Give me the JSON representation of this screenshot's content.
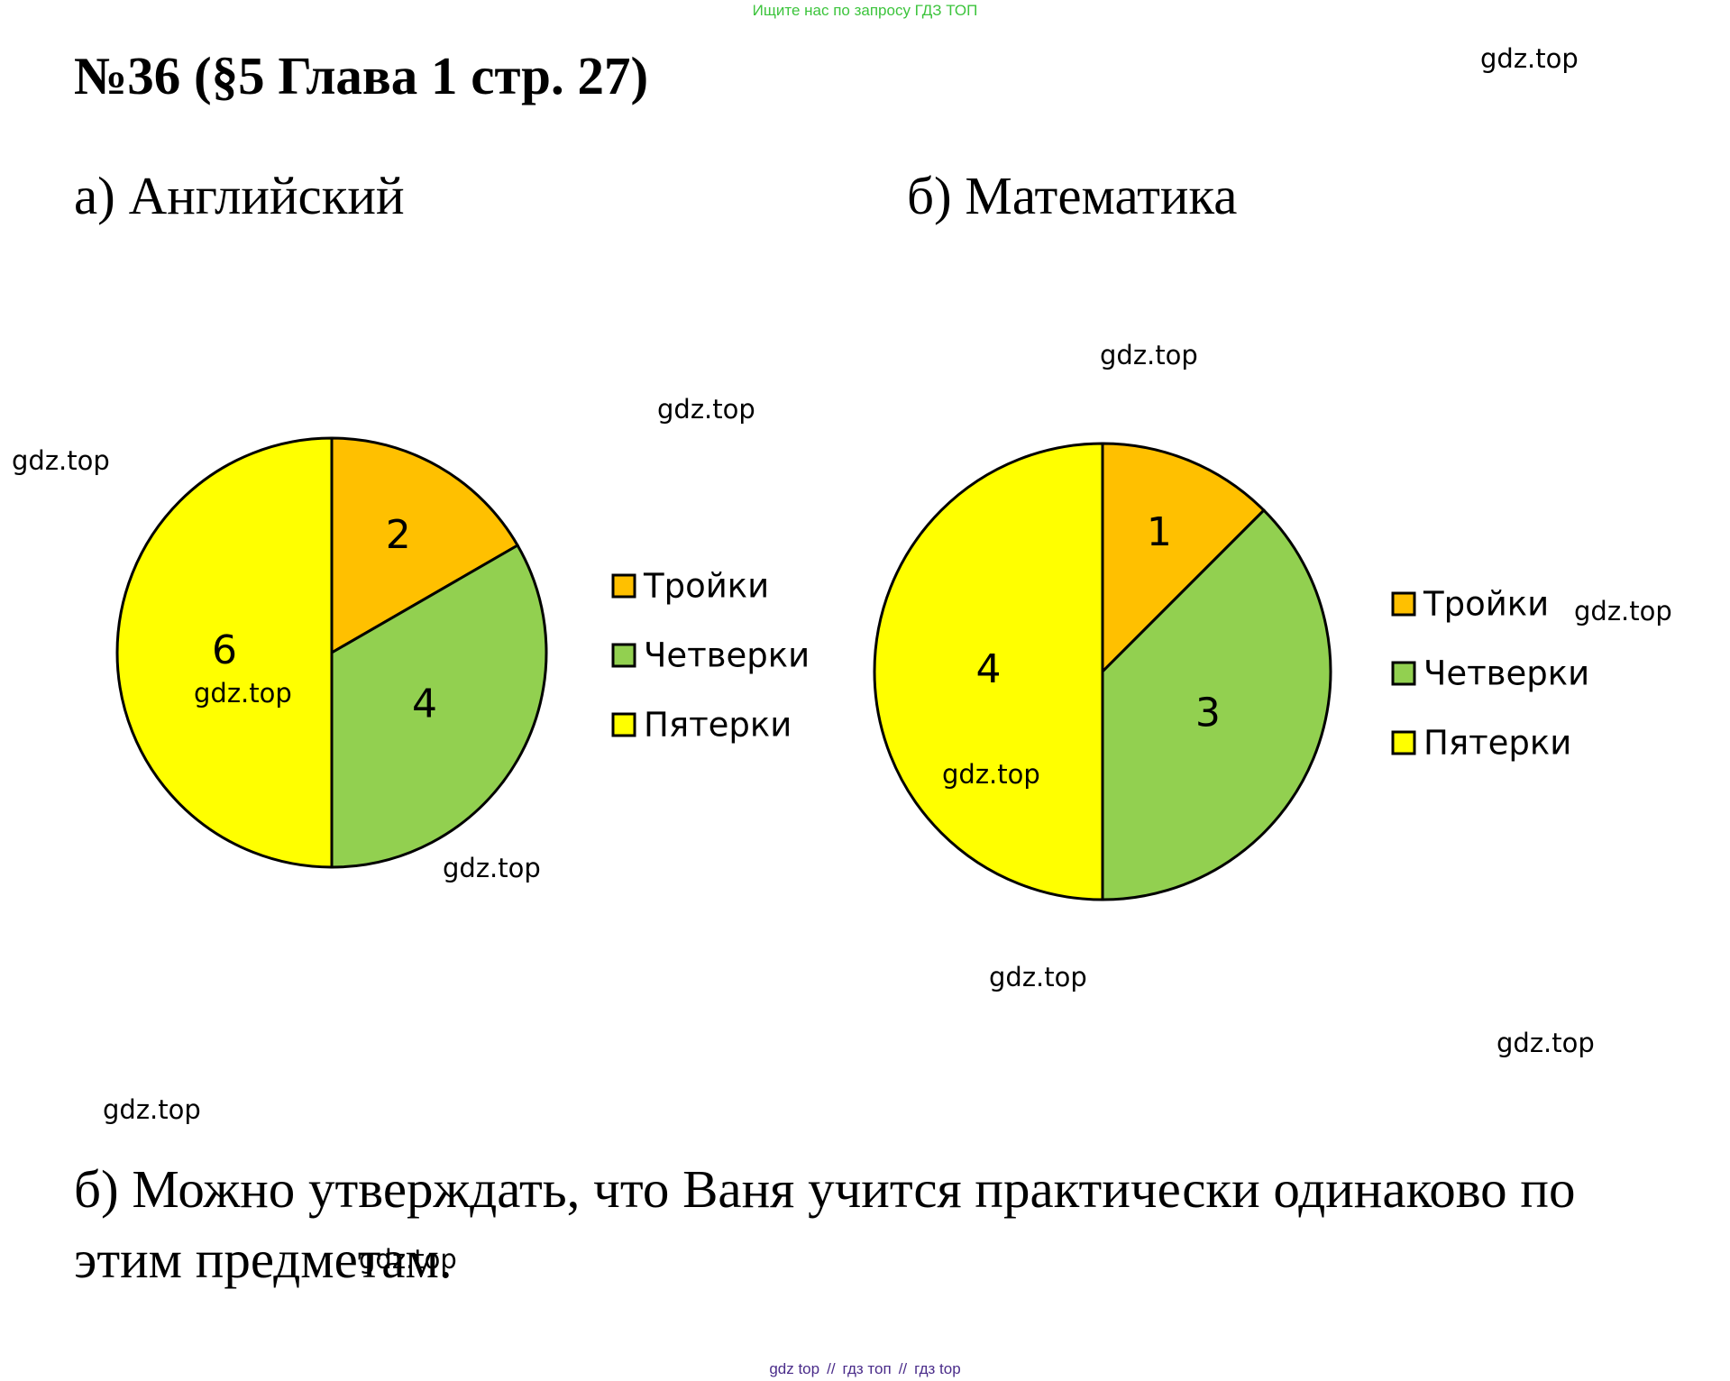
{
  "banner": "Ищите нас по запросу ГДЗ ТОП",
  "title": "№36 (§5 Глава 1 стр. 27)",
  "watermark": "gdz.top",
  "conclusion": "б) Можно утверждать, что Ваня учится практически одинаково по этим предметам.",
  "footer": [
    "gdz top",
    "гдз топ",
    "гдз top"
  ],
  "footer_sep": "//",
  "colors": {
    "troyki": "#ffc000",
    "chetverki": "#92d050",
    "pyaterki": "#ffff00"
  },
  "chart_data": [
    {
      "type": "pie",
      "title": "а) Английский",
      "categories": [
        "Тройки",
        "Четверки",
        "Пятерки"
      ],
      "values": [
        2,
        4,
        6
      ],
      "colors": [
        "#ffc000",
        "#92d050",
        "#ffff00"
      ],
      "legend": "right"
    },
    {
      "type": "pie",
      "title": "б) Математика",
      "categories": [
        "Тройки",
        "Четверки",
        "Пятерки"
      ],
      "values": [
        1,
        3,
        4
      ],
      "colors": [
        "#ffc000",
        "#92d050",
        "#ffff00"
      ],
      "legend": "right"
    }
  ]
}
